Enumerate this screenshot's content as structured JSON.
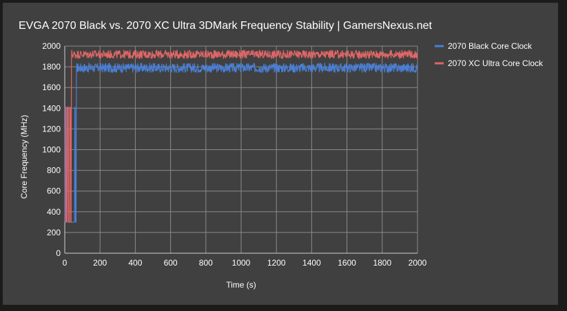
{
  "chart_data": {
    "type": "line",
    "title": "EVGA 2070 Black vs. 2070 XC Ultra 3DMark Frequency Stability | GamersNexus.net",
    "xlabel": "Time (s)",
    "ylabel": "Core Frequency (MHz)",
    "xlim": [
      0,
      2000
    ],
    "ylim": [
      0,
      2000
    ],
    "x_ticks": [
      "0",
      "200",
      "400",
      "600",
      "800",
      "1000",
      "1200",
      "1400",
      "1600",
      "1800",
      "2000"
    ],
    "y_ticks": [
      "0",
      "200",
      "400",
      "600",
      "800",
      "1000",
      "1200",
      "1400",
      "1600",
      "1800",
      "2000"
    ],
    "grid": true,
    "legend_position": "right",
    "series": [
      {
        "name": "2070 Black Core Clock",
        "color": "#4a7fd6",
        "startup": [
          [
            0,
            300
          ],
          [
            2,
            1410
          ],
          [
            6,
            1410
          ],
          [
            8,
            300
          ],
          [
            12,
            300
          ],
          [
            14,
            1410
          ],
          [
            20,
            1410
          ],
          [
            22,
            300
          ],
          [
            55,
            300
          ],
          [
            57,
            1410
          ],
          [
            59,
            1410
          ],
          [
            61,
            300
          ],
          [
            64,
            300
          ],
          [
            66,
            1700
          ],
          [
            68,
            1830
          ]
        ],
        "steady_from": 68,
        "steady_to": 2000,
        "steady_center": 1790,
        "steady_amplitude": 45
      },
      {
        "name": "2070 XC Ultra Core Clock",
        "color": "#e06666",
        "startup": [
          [
            0,
            300
          ],
          [
            3,
            300
          ],
          [
            5,
            1410
          ],
          [
            8,
            1410
          ],
          [
            10,
            300
          ],
          [
            14,
            300
          ],
          [
            16,
            1410
          ],
          [
            20,
            1410
          ],
          [
            22,
            300
          ],
          [
            26,
            300
          ],
          [
            28,
            1410
          ],
          [
            32,
            1410
          ],
          [
            34,
            300
          ],
          [
            36,
            300
          ],
          [
            38,
            1880
          ],
          [
            40,
            1960
          ]
        ],
        "steady_from": 40,
        "steady_to": 2000,
        "steady_center": 1920,
        "steady_amplitude": 40
      }
    ]
  }
}
